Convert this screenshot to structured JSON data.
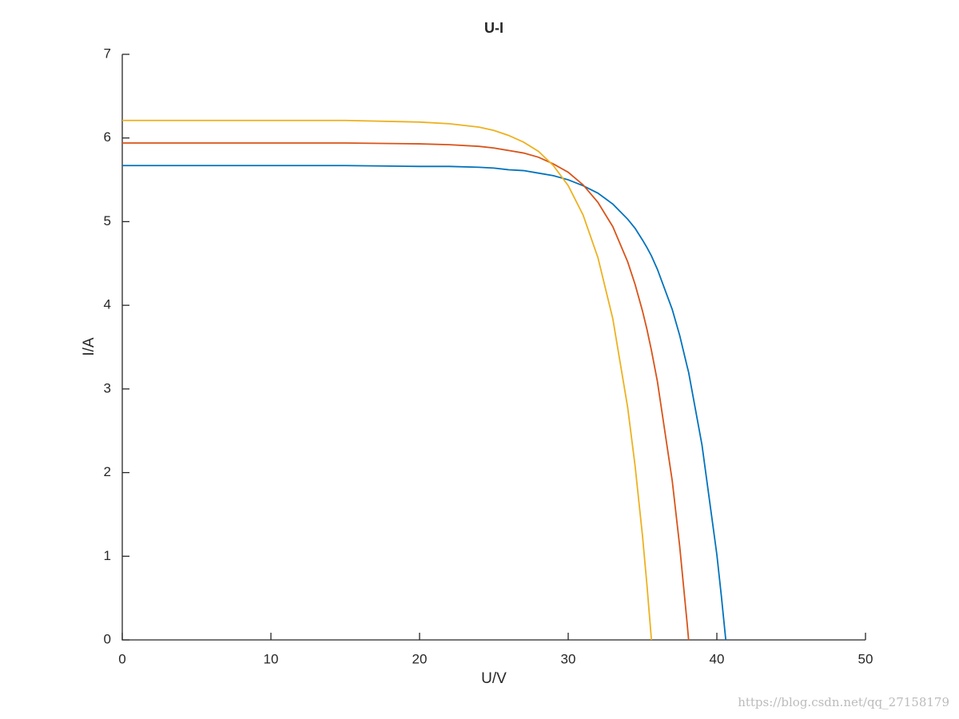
{
  "chart_data": {
    "type": "line",
    "title": "U-I",
    "x_label": "U/V",
    "y_label": "I/A",
    "x": [
      0,
      5,
      10,
      15,
      20,
      22,
      24,
      25,
      26,
      27,
      28,
      29,
      30,
      31,
      32,
      33,
      34,
      34.5,
      35,
      35.3,
      35.6,
      36,
      37,
      37.5,
      38,
      38.1,
      39,
      40,
      40.3,
      40.6
    ],
    "series": [
      {
        "color": "#0072bd",
        "values": [
          5.67,
          5.67,
          5.67,
          5.67,
          5.66,
          5.66,
          5.65,
          5.64,
          5.62,
          5.61,
          5.58,
          5.55,
          5.5,
          5.43,
          5.34,
          5.21,
          5.03,
          4.92,
          4.78,
          4.69,
          4.59,
          4.43,
          3.95,
          3.64,
          3.27,
          3.2,
          2.33,
          1.02,
          0.53,
          0
        ]
      },
      {
        "color": "#d95319",
        "values": [
          5.94,
          5.94,
          5.94,
          5.94,
          5.93,
          5.92,
          5.9,
          5.88,
          5.85,
          5.82,
          5.77,
          5.69,
          5.59,
          5.44,
          5.23,
          4.94,
          4.52,
          4.25,
          3.93,
          3.71,
          3.46,
          3.09,
          1.9,
          1.12,
          0.2,
          0,
          null,
          null,
          null,
          null
        ]
      },
      {
        "color": "#edb120",
        "values": [
          6.21,
          6.21,
          6.21,
          6.21,
          6.19,
          6.17,
          6.13,
          6.09,
          6.03,
          5.95,
          5.84,
          5.67,
          5.43,
          5.08,
          4.57,
          3.84,
          2.78,
          2.08,
          1.24,
          0.65,
          0,
          null,
          null,
          null,
          null,
          null,
          null,
          null,
          null,
          null
        ]
      }
    ],
    "xlim": [
      0,
      50
    ],
    "xticks": [
      0,
      10,
      20,
      30,
      40,
      50
    ],
    "ylim": [
      0,
      7
    ],
    "yticks": [
      0,
      1,
      2,
      3,
      4,
      5,
      6,
      7
    ],
    "grid": false
  },
  "watermark": "https://blog.csdn.net/qq_27158179"
}
